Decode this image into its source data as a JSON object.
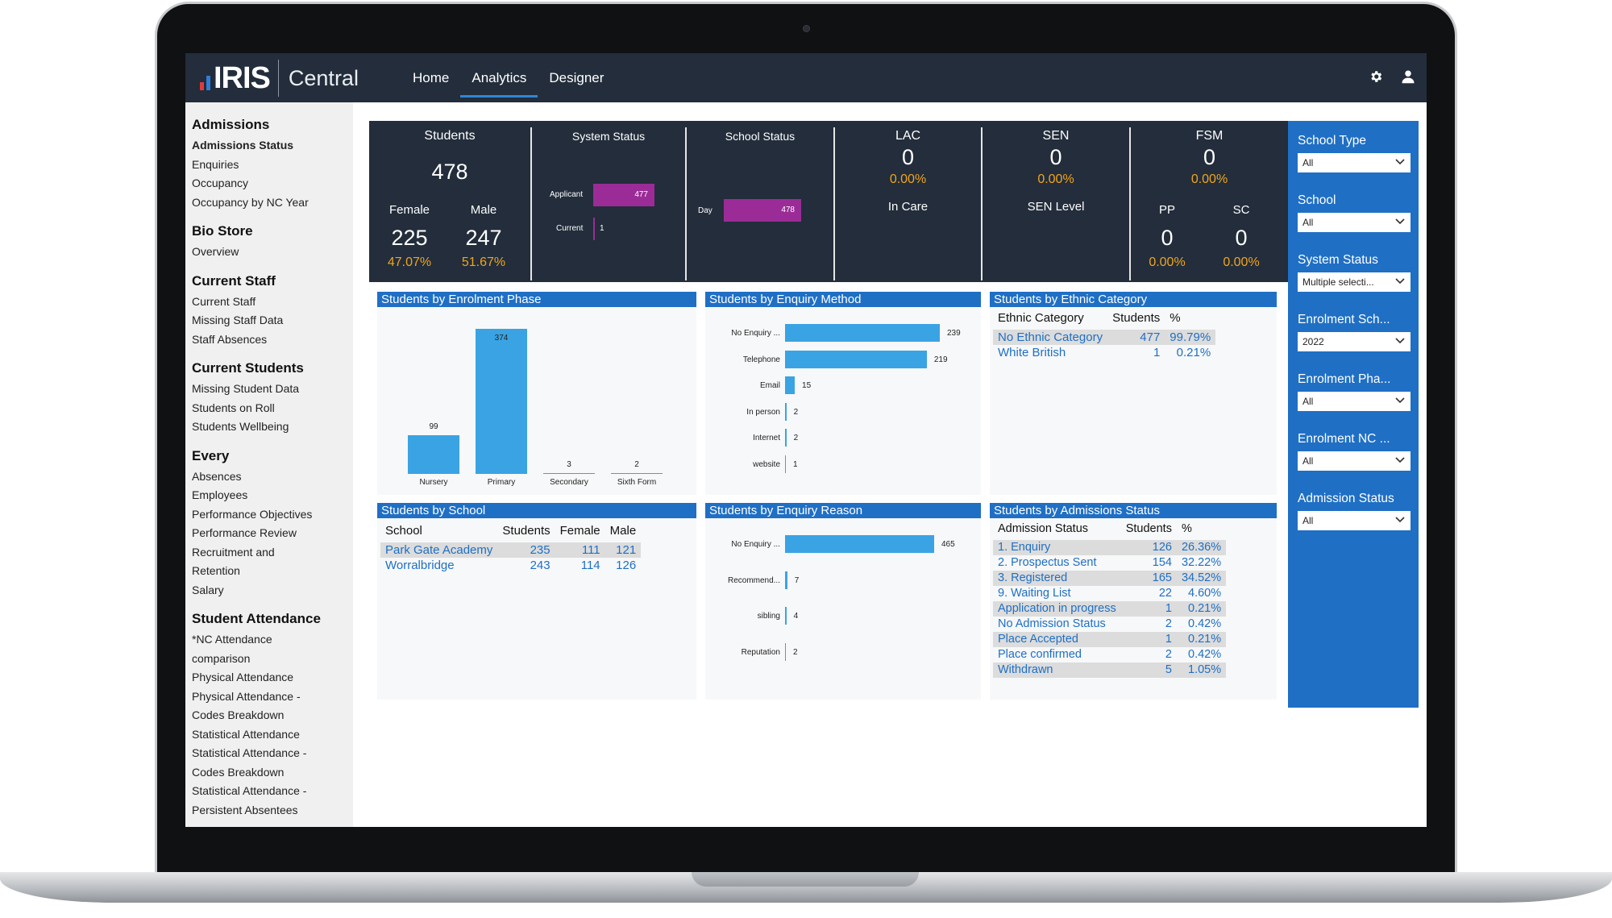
{
  "app": {
    "logo": "IRIS",
    "product": "Central"
  },
  "nav": [
    {
      "label": "Home"
    },
    {
      "label": "Analytics"
    },
    {
      "label": "Designer"
    }
  ],
  "icons": {
    "settings": "gear-icon",
    "user": "user-icon"
  },
  "sidebar": [
    {
      "heading": "Admissions",
      "items": [
        "Admissions Status",
        "Enquiries",
        "Occupancy",
        "Occupancy by NC Year"
      ]
    },
    {
      "heading": "Bio Store",
      "items": [
        "Overview"
      ]
    },
    {
      "heading": "Current Staff",
      "items": [
        "Current Staff",
        "Missing Staff Data",
        "Staff Absences"
      ]
    },
    {
      "heading": "Current Students",
      "items": [
        "Missing Student Data",
        "Students on Roll",
        "Students Wellbeing"
      ]
    },
    {
      "heading": "Every",
      "items": [
        "Absences",
        "Employees",
        "Performance Objectives",
        "Performance Review",
        "Recruitment and",
        "Retention",
        "Salary"
      ]
    },
    {
      "heading": "Student Attendance",
      "items": [
        "*NC Attendance",
        "comparison",
        "Physical Attendance",
        "Physical Attendance -",
        "Codes Breakdown",
        "Statistical Attendance",
        "Statistical Attendance -",
        "Codes Breakdown",
        "Statistical Attendance -",
        "Persistent Absentees"
      ]
    }
  ],
  "kpis": {
    "students": {
      "title": "Students",
      "total": "478",
      "female_label": "Female",
      "male_label": "Male",
      "female": "225",
      "male": "247",
      "female_pct": "47.07%",
      "male_pct": "51.67%"
    },
    "system_status": {
      "title": "System Status",
      "rows": [
        {
          "label": "Applicant",
          "value": 477
        },
        {
          "label": "Current",
          "value": 1
        }
      ]
    },
    "school_status": {
      "title": "School Status",
      "rows": [
        {
          "label": "Day",
          "value": 478
        }
      ]
    },
    "lac": {
      "title": "LAC",
      "value": "0",
      "pct": "0.00%",
      "sub": "In Care"
    },
    "sen": {
      "title": "SEN",
      "value": "0",
      "pct": "0.00%",
      "sub": "SEN Level"
    },
    "fsm": {
      "title": "FSM",
      "value": "0",
      "pct": "0.00%",
      "pp_label": "PP",
      "pp_value": "0",
      "pp_pct": "0.00%",
      "sc_label": "SC",
      "sc_value": "0",
      "sc_pct": "0.00%"
    }
  },
  "panels": {
    "enrolment_phase": {
      "title": "Students by Enrolment Phase"
    },
    "enquiry_method": {
      "title": "Students by Enquiry Method"
    },
    "ethnic": {
      "title": "Students by Ethnic Category",
      "columns": [
        "Ethnic Category",
        "Students",
        "%"
      ],
      "rows": [
        [
          "No Ethnic Category",
          "477",
          "99.79%"
        ],
        [
          "White British",
          "1",
          "0.21%"
        ]
      ]
    },
    "school": {
      "title": "Students by School",
      "columns": [
        "School",
        "Students",
        "Female",
        "Male"
      ],
      "rows": [
        [
          "Park Gate Academy",
          "235",
          "111",
          "121"
        ],
        [
          "Worralbridge",
          "243",
          "114",
          "126"
        ]
      ]
    },
    "enquiry_reason": {
      "title": "Students by Enquiry Reason"
    },
    "admissions_status": {
      "title": "Students by Admissions Status",
      "columns": [
        "Admission Status",
        "Students",
        "%"
      ],
      "rows": [
        [
          "1. Enquiry",
          "126",
          "26.36%"
        ],
        [
          "2. Prospectus Sent",
          "154",
          "32.22%"
        ],
        [
          "3. Registered",
          "165",
          "34.52%"
        ],
        [
          "9. Waiting List",
          "22",
          "4.60%"
        ],
        [
          "Application in progress",
          "1",
          "0.21%"
        ],
        [
          "No Admission Status",
          "2",
          "0.42%"
        ],
        [
          "Place Accepted",
          "1",
          "0.21%"
        ],
        [
          "Place confirmed",
          "2",
          "0.42%"
        ],
        [
          "Withdrawn",
          "5",
          "1.05%"
        ]
      ]
    }
  },
  "chart_data": [
    {
      "type": "bar",
      "categories": [
        "Nursery",
        "Primary",
        "Secondary",
        "Sixth Form"
      ],
      "values": [
        99,
        374,
        3,
        2
      ]
    },
    {
      "type": "bar",
      "orientation": "horizontal",
      "categories": [
        "No Enquiry ...",
        "Telephone",
        "Email",
        "In person",
        "Internet",
        "website"
      ],
      "values": [
        239,
        219,
        15,
        2,
        2,
        1
      ]
    },
    {
      "type": "bar",
      "orientation": "horizontal",
      "categories": [
        "No Enquiry ...",
        "Recommend...",
        "sibling",
        "Reputation"
      ],
      "values": [
        465,
        7,
        4,
        2
      ]
    }
  ],
  "filters": [
    {
      "label": "School Type",
      "value": "All"
    },
    {
      "label": "School",
      "value": "All"
    },
    {
      "label": "System Status",
      "value": "Multiple selecti..."
    },
    {
      "label": "Enrolment Sch...",
      "value": "2022"
    },
    {
      "label": "Enrolment Pha...",
      "value": "All"
    },
    {
      "label": "Enrolment NC ...",
      "value": "All"
    },
    {
      "label": "Admission Status",
      "value": "All"
    }
  ],
  "colors": {
    "topbar": "#232d3b",
    "accent": "#1f6fc5",
    "bar": "#3aa3e3",
    "magenta": "#9b2c97",
    "pct": "#f0a51e"
  }
}
